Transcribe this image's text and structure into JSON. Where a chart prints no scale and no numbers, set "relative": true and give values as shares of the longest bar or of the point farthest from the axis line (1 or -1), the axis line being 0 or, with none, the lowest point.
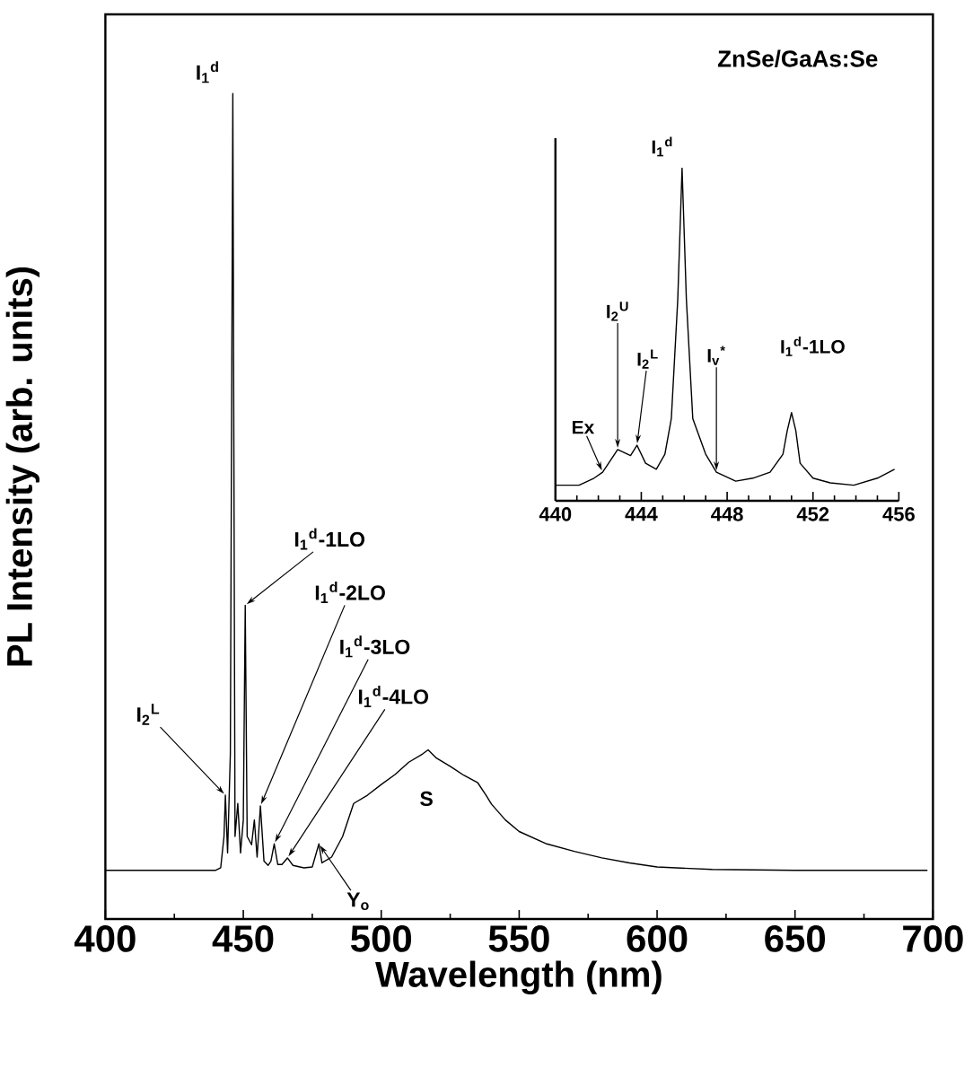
{
  "chart_data": [
    {
      "type": "line",
      "relative": true,
      "xlabel": "Wavelength (nm)",
      "ylabel": "PL Intensity (arb. units)",
      "xlim": [
        400,
        700
      ],
      "xticks": [
        400,
        450,
        500,
        550,
        600,
        650,
        700
      ],
      "color": "#000000",
      "x": [
        400,
        440,
        441.8,
        443,
        443.5,
        444.3,
        445.3,
        446.2,
        447,
        448,
        449,
        450,
        450.7,
        451.4,
        453,
        454,
        455,
        456.2,
        457.5,
        459,
        460,
        461.2,
        462.5,
        464,
        466,
        468,
        472,
        475,
        477.4,
        478.5,
        482,
        486,
        490,
        495,
        500,
        505,
        510,
        515,
        517,
        520,
        525,
        530,
        535,
        538,
        540,
        545,
        550,
        560,
        570,
        580,
        590,
        600,
        620,
        650,
        698
      ],
      "values": [
        0.059,
        0.059,
        0.062,
        0.1,
        0.15,
        0.08,
        0.2,
        1.0,
        0.1,
        0.14,
        0.08,
        0.12,
        0.38,
        0.1,
        0.09,
        0.12,
        0.075,
        0.137,
        0.07,
        0.065,
        0.07,
        0.091,
        0.066,
        0.066,
        0.074,
        0.065,
        0.062,
        0.063,
        0.091,
        0.068,
        0.075,
        0.1,
        0.14,
        0.15,
        0.163,
        0.175,
        0.19,
        0.2,
        0.205,
        0.195,
        0.185,
        0.174,
        0.165,
        0.15,
        0.139,
        0.12,
        0.106,
        0.091,
        0.082,
        0.074,
        0.068,
        0.063,
        0.06,
        0.059,
        0.059
      ],
      "annotations": [
        {
          "text": "I$_{1}$$^{d}$",
          "x": 446.2,
          "y": 1.0
        },
        {
          "text": "I$_{2}$$^{L}$",
          "x": 443.5,
          "y": 0.15
        },
        {
          "text": "I$_{1}$$^{d}$-1LO",
          "x": 450.7,
          "y": 0.38
        },
        {
          "text": "I$_{1}$$^{d}$-2LO",
          "x": 456.2,
          "y": 0.137
        },
        {
          "text": "I$_{1}$$^{d}$-3LO",
          "x": 461.2,
          "y": 0.091
        },
        {
          "text": "I$_{1}$$^{d}$-4LO",
          "x": 466,
          "y": 0.074
        },
        {
          "text": "Y$_{o}$",
          "x": 477.4,
          "y": 0.091
        },
        "S"
      ]
    },
    {
      "type": "line",
      "relative": true,
      "title": "ZnSe/GaAs:Se",
      "xlim": [
        440,
        456
      ],
      "xticks": [
        440,
        444,
        448,
        452,
        456
      ],
      "color": "#000000",
      "x": [
        440,
        441.1,
        441.8,
        442.2,
        442.9,
        443.5,
        443.8,
        444.2,
        444.7,
        445.1,
        445.4,
        445.7,
        445.9,
        446.1,
        446.4,
        447.0,
        447.5,
        448.4,
        449.2,
        450.0,
        450.6,
        450.8,
        451.0,
        451.2,
        451.4,
        452.0,
        452.8,
        453.9,
        455.0,
        455.8
      ],
      "values": [
        0.047,
        0.047,
        0.068,
        0.086,
        0.154,
        0.136,
        0.167,
        0.113,
        0.095,
        0.14,
        0.247,
        0.606,
        1.0,
        0.606,
        0.247,
        0.14,
        0.086,
        0.059,
        0.068,
        0.086,
        0.14,
        0.211,
        0.265,
        0.211,
        0.113,
        0.068,
        0.054,
        0.047,
        0.068,
        0.095
      ],
      "annotations": [
        {
          "text": "Ex",
          "x": 442.2,
          "y": 0.086
        },
        {
          "text": "I$_{2}$$^{U}$",
          "x": 442.9,
          "y": 0.154
        },
        {
          "text": "I$_{2}$$^{L}$",
          "x": 443.8,
          "y": 0.167
        },
        {
          "text": "I$_{1}$$^{d}$",
          "x": 445.9,
          "y": 1.0
        },
        {
          "text": "I$_{v}$$^{*}$",
          "x": 447.5,
          "y": 0.086
        },
        "I$_{1}$$^{d}$-1LO"
      ]
    }
  ]
}
